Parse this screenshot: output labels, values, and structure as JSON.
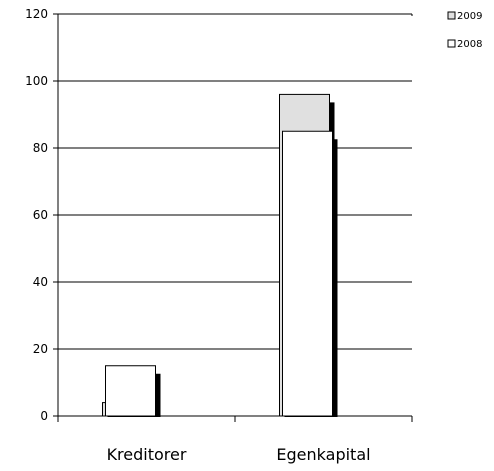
{
  "chart_data": {
    "type": "bar",
    "categories": [
      "Kreditorer",
      "Egenkapital"
    ],
    "series": [
      {
        "name": "2009",
        "values": [
          4,
          96
        ],
        "color": "#e0e0e0"
      },
      {
        "name": "2008",
        "values": [
          15,
          85
        ],
        "color": "#ffffff"
      }
    ],
    "title": "",
    "xlabel": "",
    "ylabel": "",
    "ylim": [
      0,
      120
    ],
    "yticks": [
      0,
      20,
      40,
      60,
      80,
      100,
      120
    ],
    "grid": true,
    "legend": "top-right",
    "shadow_color": "#000000"
  }
}
